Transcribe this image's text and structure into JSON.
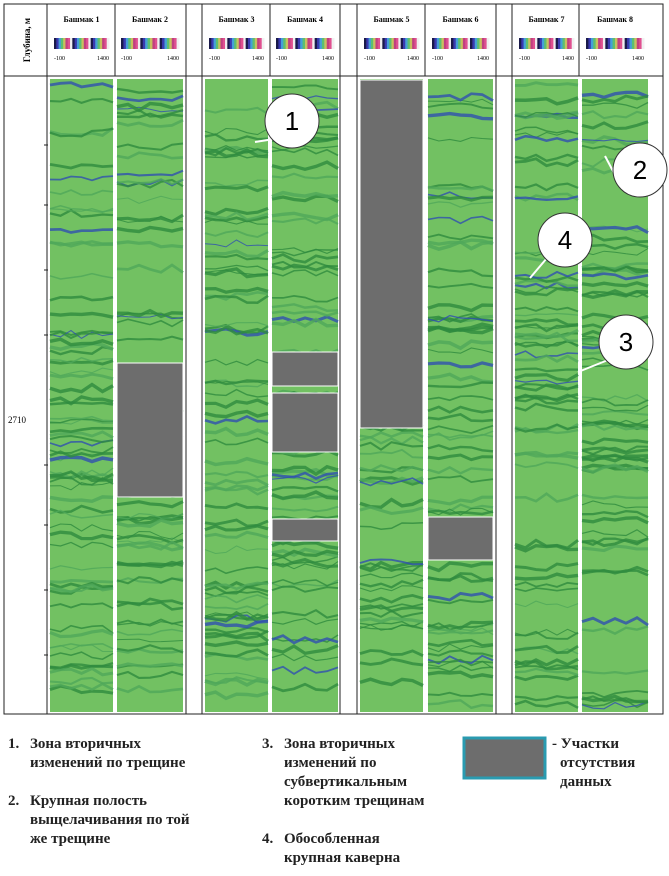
{
  "header": {
    "depth_label": "Глубина, м",
    "depth_value": "2710"
  },
  "pads": [
    {
      "label": "Башмак 1",
      "scale_min": "-100",
      "scale_max": "1400"
    },
    {
      "label": "Башмак 2",
      "scale_min": "-100",
      "scale_max": "1400"
    },
    {
      "label": "Башмак 3",
      "scale_min": "-100",
      "scale_max": "1400"
    },
    {
      "label": "Башмак 4",
      "scale_min": "-100",
      "scale_max": "1400"
    },
    {
      "label": "Башмак 5",
      "scale_min": "-100",
      "scale_max": "1400"
    },
    {
      "label": "Башмак 6",
      "scale_min": "-100",
      "scale_max": "1400"
    },
    {
      "label": "Башмак 7",
      "scale_min": "-100",
      "scale_max": "1400"
    },
    {
      "label": "Башмак 8",
      "scale_min": "-100",
      "scale_max": "1400"
    }
  ],
  "callouts": [
    "1",
    "2",
    "3",
    "4"
  ],
  "legend": {
    "items": [
      {
        "number": "1.",
        "lines": [
          "Зона вторичных",
          "изменений по трещине"
        ]
      },
      {
        "number": "2.",
        "lines": [
          "Крупная полость",
          "выщелачивания по той",
          "же трещине"
        ]
      },
      {
        "number": "3.",
        "lines": [
          "Зона вторичных",
          "изменений по",
          "субвертикальным",
          "коротким трещинам"
        ]
      },
      {
        "number": "4.",
        "lines": [
          "Обособленная",
          "крупная каверна"
        ]
      }
    ],
    "no_data": [
      "- Участки",
      "отсутствия",
      "данных"
    ]
  }
}
